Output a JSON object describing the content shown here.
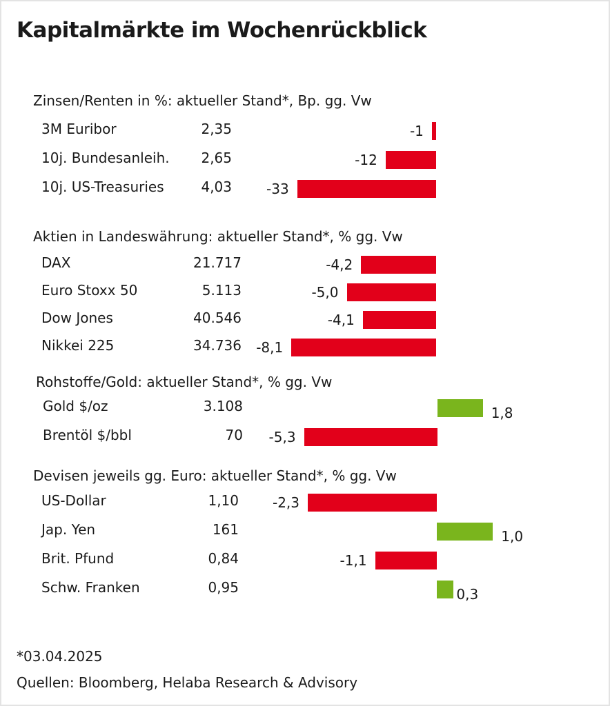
{
  "title": "Kapitalmärkte im Wochenrückblick",
  "colors": {
    "negative": "#e2001a",
    "positive": "#7ab51d"
  },
  "chart_data": {
    "type": "bar",
    "orientation": "horizontal",
    "title": "Kapitalmärkte im Wochenrückblick",
    "sections": [
      {
        "title": "Zinsen/Renten in %: aktueller Stand*, Bp. gg. Vw",
        "unit_change": "Bp.",
        "rows": [
          {
            "name": "3M Euribor",
            "value": "2,35",
            "change": -1,
            "change_label": "-1"
          },
          {
            "name": "10j. Bundesanleih.",
            "value": "2,65",
            "change": -12,
            "change_label": "-12"
          },
          {
            "name": "10j. US-Treasuries",
            "value": "4,03",
            "change": -33,
            "change_label": "-33"
          }
        ]
      },
      {
        "title": "Aktien in Landeswährung: aktueller Stand*, % gg. Vw",
        "unit_change": "%",
        "rows": [
          {
            "name": "DAX",
            "value": "21.717",
            "change": -4.2,
            "change_label": "-4,2"
          },
          {
            "name": "Euro Stoxx 50",
            "value": "5.113",
            "change": -5.0,
            "change_label": "-5,0"
          },
          {
            "name": "Dow Jones",
            "value": "40.546",
            "change": -4.1,
            "change_label": "-4,1"
          },
          {
            "name": "Nikkei 225",
            "value": "34.736",
            "change": -8.1,
            "change_label": "-8,1"
          }
        ]
      },
      {
        "title": "Rohstoffe/Gold: aktueller Stand*, % gg. Vw",
        "unit_change": "%",
        "rows": [
          {
            "name": "Gold $/oz",
            "value": "3.108",
            "change": 1.8,
            "change_label": "1,8"
          },
          {
            "name": "Brentöl $/bbl",
            "value": "70",
            "change": -5.3,
            "change_label": "-5,3"
          }
        ]
      },
      {
        "title": "Devisen jeweils gg. Euro: aktueller Stand*, % gg. Vw",
        "unit_change": "%",
        "rows": [
          {
            "name": "US-Dollar",
            "value": "1,10",
            "change": -2.3,
            "change_label": "-2,3"
          },
          {
            "name": "Jap. Yen",
            "value": "161",
            "change": 1.0,
            "change_label": "1,0"
          },
          {
            "name": "Brit. Pfund",
            "value": "0,84",
            "change": -1.1,
            "change_label": "-1,1"
          },
          {
            "name": "Schw. Franken",
            "value": "0,95",
            "change": 0.3,
            "change_label": "0,3"
          }
        ]
      }
    ]
  },
  "footnote": "*03.04.2025",
  "source": "Quellen: Bloomberg, Helaba Research & Advisory"
}
